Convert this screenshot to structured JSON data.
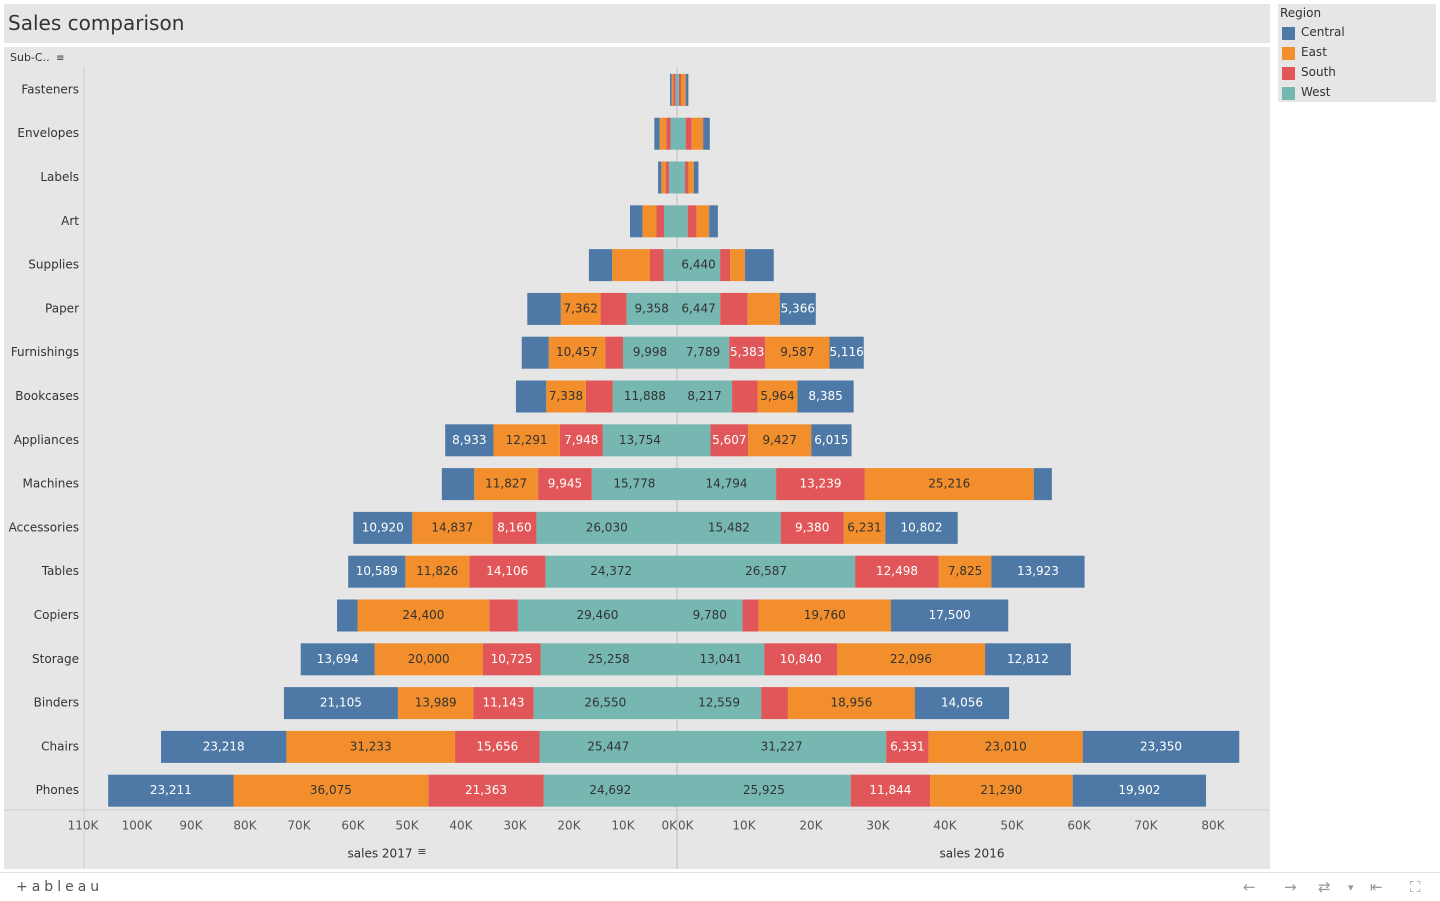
{
  "title": "Sales comparison",
  "row_header": "Sub-C..",
  "footer": {
    "logo": "+ableau",
    "buttons": [
      "←",
      "→",
      "⇄",
      "▾",
      "⇤",
      "⛶"
    ]
  },
  "legend": {
    "title": "Region",
    "items": [
      {
        "name": "Central",
        "color": "#4e79a7"
      },
      {
        "name": "East",
        "color": "#f28e2b"
      },
      {
        "name": "South",
        "color": "#e15759"
      },
      {
        "name": "West",
        "color": "#76b7b2"
      }
    ]
  },
  "chart_data": {
    "type": "bar",
    "title": "Sales comparison",
    "orientation": "horizontal-diverging",
    "categories": [
      "Fasteners",
      "Envelopes",
      "Labels",
      "Art",
      "Supplies",
      "Paper",
      "Furnishings",
      "Bookcases",
      "Appliances",
      "Machines",
      "Accessories",
      "Tables",
      "Copiers",
      "Storage",
      "Binders",
      "Chairs",
      "Phones"
    ],
    "left": {
      "label": "sales 2017",
      "ticks": [
        "110K",
        "100K",
        "90K",
        "80K",
        "70K",
        "60K",
        "50K",
        "40K",
        "30K",
        "20K",
        "10K",
        "0K"
      ],
      "series": [
        {
          "name": "West",
          "values": [
            300,
            1200,
            1500,
            2400,
            2500,
            9358,
            9998,
            11888,
            13754,
            15778,
            26030,
            24372,
            29460,
            25258,
            26550,
            25447,
            24692
          ]
        },
        {
          "name": "South",
          "values": [
            400,
            800,
            600,
            1400,
            2500,
            4800,
            3300,
            5000,
            7948,
            9945,
            8160,
            14106,
            5300,
            10725,
            11143,
            15656,
            21363
          ]
        },
        {
          "name": "East",
          "values": [
            300,
            1200,
            800,
            2600,
            7018,
            7362,
            10457,
            7338,
            12291,
            11827,
            14837,
            11826,
            24400,
            20000,
            13989,
            31233,
            36075
          ]
        },
        {
          "name": "Central",
          "values": [
            300,
            1000,
            600,
            2300,
            4300,
            6200,
            5000,
            5600,
            8933,
            6000,
            10920,
            10589,
            3800,
            13694,
            21105,
            23218,
            23211
          ]
        }
      ]
    },
    "right": {
      "label": "sales 2016",
      "ticks": [
        "0K",
        "10K",
        "20K",
        "30K",
        "40K",
        "50K",
        "60K",
        "70K",
        "80K"
      ],
      "series": [
        {
          "name": "West",
          "values": [
            300,
            1300,
            1200,
            1600,
            6440,
            6447,
            7789,
            8217,
            5001,
            14794,
            15482,
            26587,
            9780,
            13041,
            12559,
            31227,
            25925
          ]
        },
        {
          "name": "South",
          "values": [
            300,
            900,
            500,
            1300,
            1500,
            4100,
            5383,
            3800,
            5607,
            13239,
            9380,
            12498,
            2400,
            10840,
            4000,
            6331,
            11844
          ]
        },
        {
          "name": "East",
          "values": [
            700,
            1700,
            800,
            1900,
            2200,
            4800,
            9587,
            5964,
            9427,
            25216,
            6231,
            7825,
            19760,
            22096,
            18956,
            23010,
            21290
          ]
        },
        {
          "name": "Central",
          "values": [
            400,
            1000,
            700,
            1300,
            4300,
            5366,
            5116,
            8385,
            6015,
            2700,
            10802,
            13923,
            17500,
            12812,
            14056,
            23350,
            19902
          ]
        }
      ]
    }
  }
}
